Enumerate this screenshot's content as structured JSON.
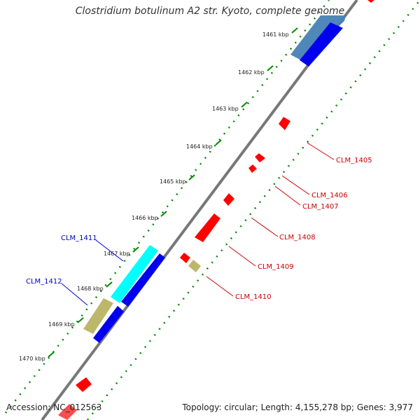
{
  "title": "Clostridium botulinum A2 str. Kyoto, complete genome",
  "footer": {
    "accession": "Accession: NC_012563",
    "summary": "Topology: circular; Length: 4,155,278 bp; Genes: 3,977"
  },
  "ruler": [
    "1461 kbp",
    "1462 kbp",
    "1463 kbp",
    "1464 kbp",
    "1465 kbp",
    "1466 kbp",
    "1467 kbp",
    "1468 kbp",
    "1469 kbp",
    "1470 kbp"
  ],
  "labels": {
    "reverse": [
      "CLM_1405",
      "CLM_1406",
      "CLM_1407",
      "CLM_1408",
      "CLM_1409",
      "CLM_1410"
    ],
    "forward": [
      "CLM_1411",
      "CLM_1412"
    ]
  },
  "colors": {
    "backbone": "#777777",
    "forward_label": "#0000cc",
    "reverse_label": "#cc0000",
    "gene_red": "#ff0000",
    "gene_blue": "#0000ee",
    "gene_cyan": "#00ffff",
    "gene_khaki": "#bdb76b",
    "gene_steelblue": "#4682b4",
    "dots": "#008800"
  }
}
